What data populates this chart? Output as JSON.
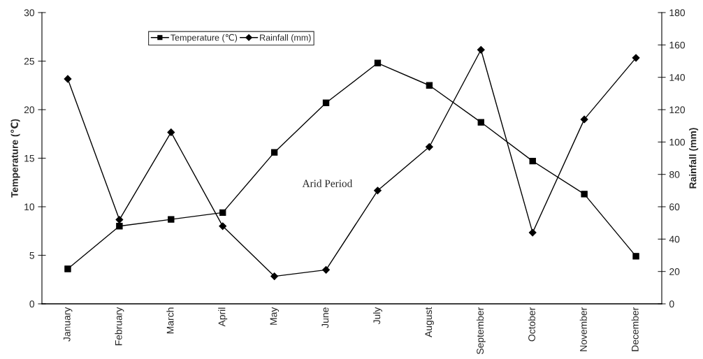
{
  "chart_data": {
    "type": "line",
    "categories": [
      "January",
      "February",
      "March",
      "April",
      "May",
      "June",
      "July",
      "August",
      "September",
      "October",
      "November",
      "December"
    ],
    "series": [
      {
        "name": "Temperature (℃)",
        "color": "#000000",
        "marker": "square",
        "values": [
          3.6,
          8.0,
          8.7,
          9.4,
          15.6,
          20.7,
          24.8,
          22.5,
          18.7,
          14.7,
          11.3,
          4.9
        ]
      },
      {
        "name": "Rainfall (mm)",
        "color": "#000000",
        "marker": "diamond",
        "axis": "y2",
        "values": [
          139,
          52,
          106,
          48,
          17,
          21,
          70,
          97,
          157,
          44,
          114,
          152
        ]
      }
    ],
    "ylabel": "Temperature (℃)",
    "y2label": "Rainfall (mm)",
    "ylim": [
      0,
      30
    ],
    "yticks": [
      0,
      5,
      10,
      15,
      20,
      25,
      30
    ],
    "y2lim": [
      0,
      180
    ],
    "y2ticks": [
      0,
      20,
      40,
      60,
      80,
      100,
      120,
      140,
      160,
      180
    ],
    "annotations": [
      "Arid Period"
    ],
    "legend": "top left",
    "grid": false,
    "line_style": "solid"
  }
}
